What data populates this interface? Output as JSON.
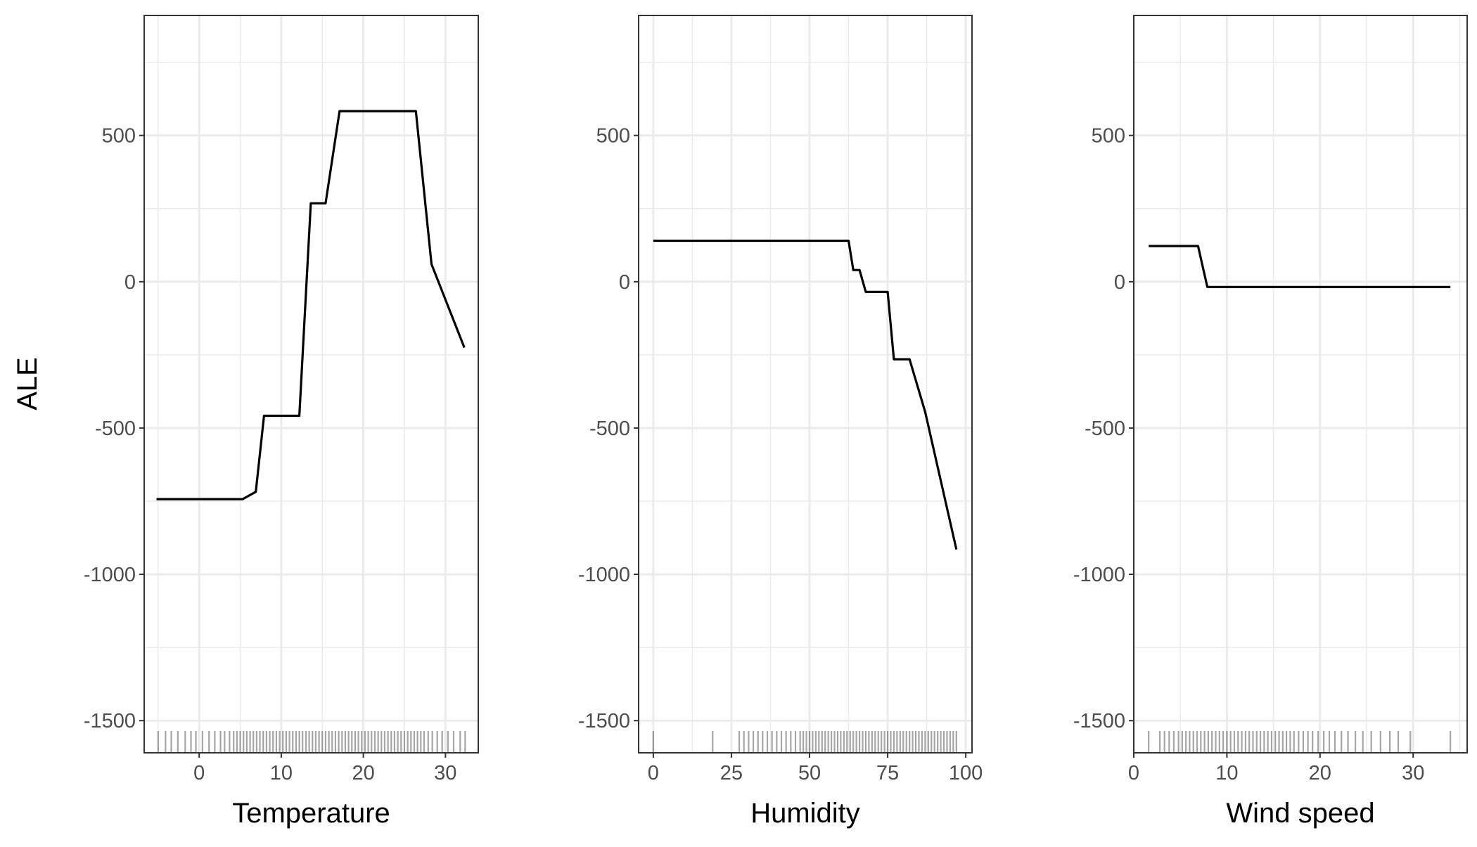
{
  "ylabel": "ALE",
  "colors": {
    "line": "#000000",
    "grid": "#ebebeb",
    "panel_border": "#333333",
    "tick_text": "#4d4d4d",
    "rug": "#000000"
  },
  "chart_data": [
    {
      "type": "line",
      "title": "",
      "xlabel": "Temperature",
      "ylabel": "ALE",
      "xlim": [
        -6.7,
        34.0
      ],
      "ylim": [
        -1610,
        910
      ],
      "xticks": [
        0,
        10,
        20,
        30
      ],
      "yticks": [
        -1500,
        -1000,
        -500,
        0,
        500
      ],
      "grid": true,
      "series": [
        {
          "x": [
            -5.2,
            5.3,
            6.9,
            7.9,
            12.2,
            13.6,
            15.4,
            17.1,
            26.4,
            28.3,
            32.3
          ],
          "y": [
            -743,
            -743,
            -718,
            -458,
            -458,
            268,
            268,
            583,
            583,
            60,
            -225
          ]
        }
      ],
      "rug": [
        -5.0,
        -4.1,
        -3.4,
        -2.6,
        -1.7,
        -1.0,
        -0.4,
        0.4,
        1.2,
        1.9,
        2.6,
        3.1,
        3.7,
        4.2,
        4.6,
        5.0,
        5.4,
        5.8,
        6.2,
        6.6,
        7.0,
        7.4,
        7.8,
        8.2,
        8.6,
        9.0,
        9.4,
        9.8,
        10.2,
        10.6,
        11.0,
        11.4,
        11.8,
        12.2,
        12.6,
        13.0,
        13.4,
        13.8,
        14.2,
        14.6,
        15.0,
        15.4,
        15.8,
        16.2,
        16.6,
        17.0,
        17.4,
        17.8,
        18.2,
        18.6,
        19.0,
        19.4,
        19.8,
        20.2,
        20.6,
        21.0,
        21.4,
        21.8,
        22.2,
        22.6,
        23.0,
        23.4,
        23.8,
        24.2,
        24.6,
        25.0,
        25.4,
        25.8,
        26.2,
        26.6,
        27.0,
        27.4,
        27.9,
        28.4,
        29.0,
        29.6,
        30.3,
        31.0,
        31.8,
        32.4
      ]
    },
    {
      "type": "line",
      "title": "",
      "xlabel": "Humidity",
      "ylabel": "",
      "xlim": [
        -4.7,
        102.0
      ],
      "ylim": [
        -1610,
        910
      ],
      "xticks": [
        0,
        25,
        50,
        75,
        100
      ],
      "yticks": [
        -1500,
        -1000,
        -500,
        0,
        500
      ],
      "grid": true,
      "series": [
        {
          "x": [
            0,
            62.5,
            64,
            66,
            68,
            75,
            77,
            82,
            87,
            97
          ],
          "y": [
            140,
            140,
            40,
            40,
            -35,
            -35,
            -265,
            -265,
            -445,
            -915
          ]
        }
      ],
      "rug": [
        0,
        19,
        27.5,
        29,
        30.5,
        32,
        33.5,
        35,
        36.5,
        38,
        39.5,
        41,
        42.5,
        44,
        45.5,
        47,
        48,
        49,
        50,
        51,
        52,
        53,
        54,
        55,
        56,
        57,
        58,
        59,
        60,
        61,
        62,
        63,
        64,
        65,
        66,
        67,
        68,
        69,
        70,
        71,
        72,
        73,
        74,
        75,
        76,
        77,
        78,
        79,
        80,
        81,
        82,
        83,
        84,
        85,
        86,
        87,
        88,
        89,
        90,
        91,
        92,
        93,
        94,
        95,
        96,
        97
      ]
    },
    {
      "type": "line",
      "title": "",
      "xlabel": "Wind speed",
      "ylabel": "",
      "xlim": [
        0,
        35.8
      ],
      "ylim": [
        -1610,
        910
      ],
      "xticks": [
        0,
        10,
        20,
        30
      ],
      "yticks": [
        -1500,
        -1000,
        -500,
        0,
        500
      ],
      "grid": true,
      "series": [
        {
          "x": [
            1.6,
            6.9,
            7.9,
            34.0
          ],
          "y": [
            122,
            122,
            -18,
            -18
          ]
        }
      ],
      "rug": [
        1.6,
        2.8,
        3.3,
        3.8,
        4.3,
        4.8,
        5.2,
        5.6,
        6.0,
        6.4,
        6.8,
        7.2,
        7.6,
        8.0,
        8.4,
        8.8,
        9.2,
        9.6,
        10.0,
        10.4,
        10.8,
        11.2,
        11.6,
        12.0,
        12.4,
        12.8,
        13.2,
        13.6,
        14.0,
        14.4,
        14.8,
        15.2,
        15.6,
        16.0,
        16.4,
        16.8,
        17.2,
        17.7,
        18.2,
        18.7,
        19.2,
        19.8,
        20.4,
        21.0,
        21.6,
        22.3,
        23.0,
        23.8,
        24.6,
        25.5,
        26.5,
        27.5,
        28.4,
        29.7,
        34.0
      ]
    }
  ]
}
